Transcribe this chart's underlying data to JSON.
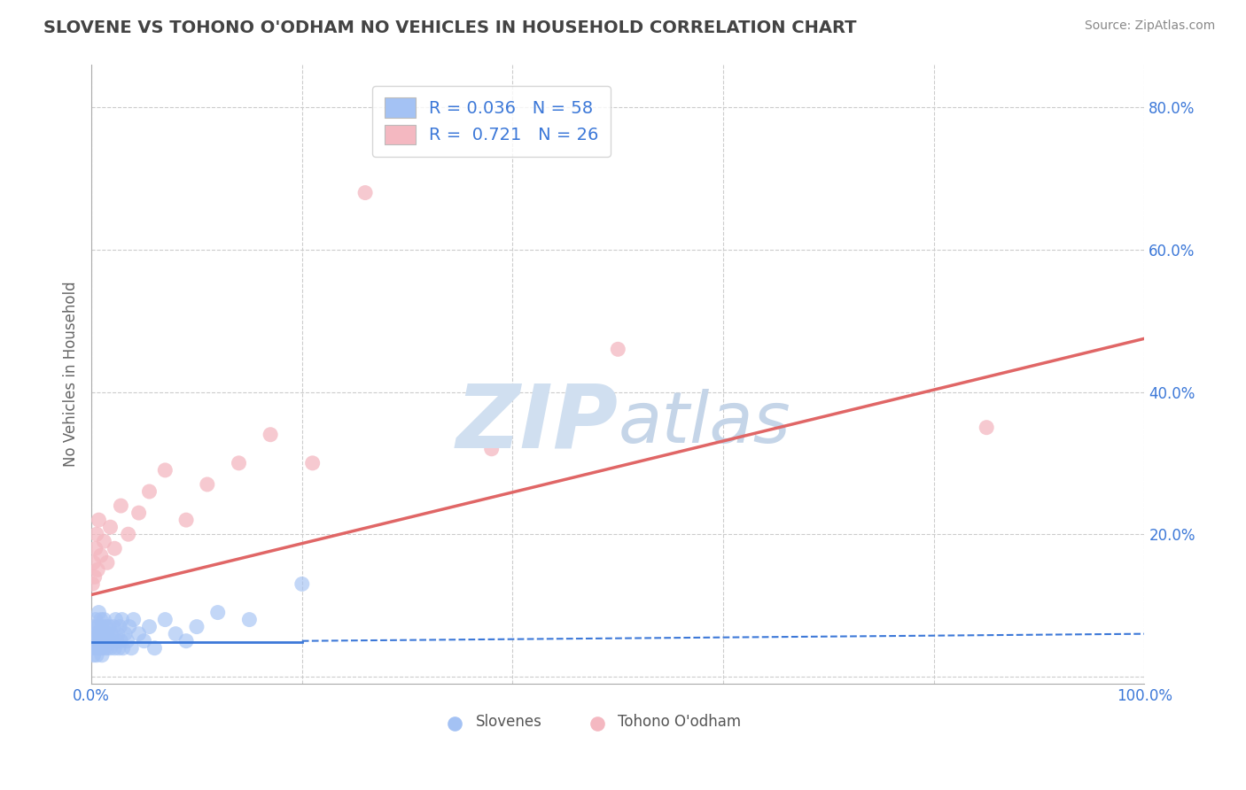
{
  "title": "SLOVENE VS TOHONO O'ODHAM NO VEHICLES IN HOUSEHOLD CORRELATION CHART",
  "source_text": "Source: ZipAtlas.com",
  "ylabel": "No Vehicles in Household",
  "xlim": [
    0.0,
    1.0
  ],
  "ylim": [
    -0.01,
    0.86
  ],
  "x_ticks": [
    0.0,
    0.2,
    0.4,
    0.6,
    0.8,
    1.0
  ],
  "x_tick_labels": [
    "0.0%",
    "",
    "",
    "",
    "",
    "100.0%"
  ],
  "y_ticks": [
    0.0,
    0.2,
    0.4,
    0.6,
    0.8
  ],
  "y_tick_labels": [
    "",
    "20.0%",
    "40.0%",
    "60.0%",
    "80.0%"
  ],
  "blue_color": "#a4c2f4",
  "pink_color": "#f4b8c1",
  "blue_line_color": "#3c78d8",
  "pink_line_color": "#e06666",
  "watermark_zip_color": "#d0dff0",
  "watermark_atlas_color": "#c5d5e8",
  "grid_color": "#cccccc",
  "background_color": "#ffffff",
  "legend_text_color": "#3c78d8",
  "title_color": "#434343",
  "source_color": "#888888",
  "ylabel_color": "#666666",
  "tick_color": "#3c78d8",
  "slovene_x": [
    0.001,
    0.002,
    0.002,
    0.003,
    0.003,
    0.004,
    0.004,
    0.005,
    0.005,
    0.006,
    0.006,
    0.007,
    0.007,
    0.008,
    0.008,
    0.009,
    0.009,
    0.01,
    0.01,
    0.011,
    0.011,
    0.012,
    0.012,
    0.013,
    0.014,
    0.015,
    0.015,
    0.016,
    0.017,
    0.018,
    0.019,
    0.02,
    0.021,
    0.022,
    0.023,
    0.024,
    0.025,
    0.026,
    0.027,
    0.028,
    0.029,
    0.03,
    0.032,
    0.034,
    0.036,
    0.038,
    0.04,
    0.045,
    0.05,
    0.055,
    0.06,
    0.07,
    0.08,
    0.09,
    0.1,
    0.12,
    0.15,
    0.2
  ],
  "slovene_y": [
    0.04,
    0.06,
    0.03,
    0.05,
    0.07,
    0.04,
    0.08,
    0.03,
    0.06,
    0.05,
    0.07,
    0.04,
    0.09,
    0.05,
    0.06,
    0.04,
    0.08,
    0.03,
    0.07,
    0.05,
    0.06,
    0.04,
    0.08,
    0.05,
    0.07,
    0.04,
    0.06,
    0.05,
    0.07,
    0.04,
    0.06,
    0.05,
    0.07,
    0.04,
    0.08,
    0.05,
    0.06,
    0.04,
    0.07,
    0.05,
    0.08,
    0.04,
    0.06,
    0.05,
    0.07,
    0.04,
    0.08,
    0.06,
    0.05,
    0.07,
    0.04,
    0.08,
    0.06,
    0.05,
    0.07,
    0.09,
    0.08,
    0.13
  ],
  "tohono_x": [
    0.001,
    0.002,
    0.003,
    0.004,
    0.005,
    0.006,
    0.007,
    0.009,
    0.012,
    0.015,
    0.018,
    0.022,
    0.028,
    0.035,
    0.045,
    0.055,
    0.07,
    0.09,
    0.11,
    0.14,
    0.17,
    0.21,
    0.26,
    0.38,
    0.5,
    0.85
  ],
  "tohono_y": [
    0.13,
    0.16,
    0.14,
    0.18,
    0.2,
    0.15,
    0.22,
    0.17,
    0.19,
    0.16,
    0.21,
    0.18,
    0.24,
    0.2,
    0.23,
    0.26,
    0.29,
    0.22,
    0.27,
    0.3,
    0.34,
    0.3,
    0.68,
    0.32,
    0.46,
    0.35
  ],
  "pink_line_x0": 0.0,
  "pink_line_y0": 0.115,
  "pink_line_x1": 1.0,
  "pink_line_y1": 0.475,
  "blue_line_solid_x0": 0.0,
  "blue_line_solid_x1": 0.2,
  "blue_line_y": 0.048,
  "blue_line_dash_x0": 0.2,
  "blue_line_dash_x1": 1.0,
  "blue_line_dash_y0": 0.05,
  "blue_line_dash_y1": 0.06
}
